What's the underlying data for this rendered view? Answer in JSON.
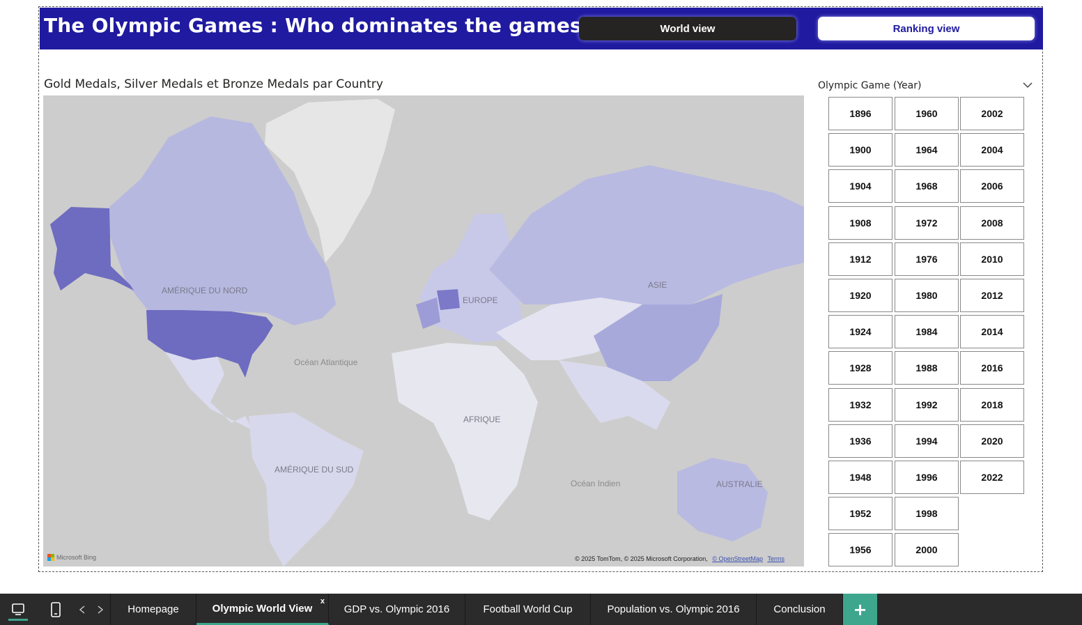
{
  "header": {
    "title": "The Olympic Games : Who dominates the games ?",
    "world_view_label": "World view",
    "ranking_view_label": "Ranking view",
    "background_color": "#1f1aa0"
  },
  "map": {
    "title": "Gold Medals, Silver Medals et Bronze Medals par Country",
    "labels": {
      "north_america": "AMÉRIQUE DU NORD",
      "south_america": "AMÉRIQUE DU SUD",
      "europe": "EUROPE",
      "asia": "ASIE",
      "africa": "AFRIQUE",
      "australia": "AUSTRALIE",
      "atlantic": "Océan Atlantique",
      "indian": "Océan Indien"
    },
    "bing_label": "Microsoft Bing",
    "credits_text": "© 2025 TomTom, © 2025 Microsoft Corporation,",
    "credits_osm": "© OpenStreetMap",
    "credits_terms": "Terms"
  },
  "slicer": {
    "title": "Olympic Game (Year)",
    "columns": [
      [
        "1896",
        "1900",
        "1904",
        "1908",
        "1912",
        "1920",
        "1924",
        "1928",
        "1932",
        "1936",
        "1948",
        "1952",
        "1956"
      ],
      [
        "1960",
        "1964",
        "1968",
        "1972",
        "1976",
        "1980",
        "1984",
        "1988",
        "1992",
        "1994",
        "1996",
        "1998",
        "2000"
      ],
      [
        "2002",
        "2004",
        "2006",
        "2008",
        "2010",
        "2012",
        "2014",
        "2016",
        "2018",
        "2020",
        "2022"
      ]
    ]
  },
  "tabs": {
    "items": [
      "Homepage",
      "Olympic World View",
      "GDP vs. Olympic 2016",
      "Football World Cup",
      "Population vs. Olympic 2016",
      "Conclusion"
    ],
    "active": "Olympic World View",
    "close_label": "x",
    "add_label": "+"
  }
}
